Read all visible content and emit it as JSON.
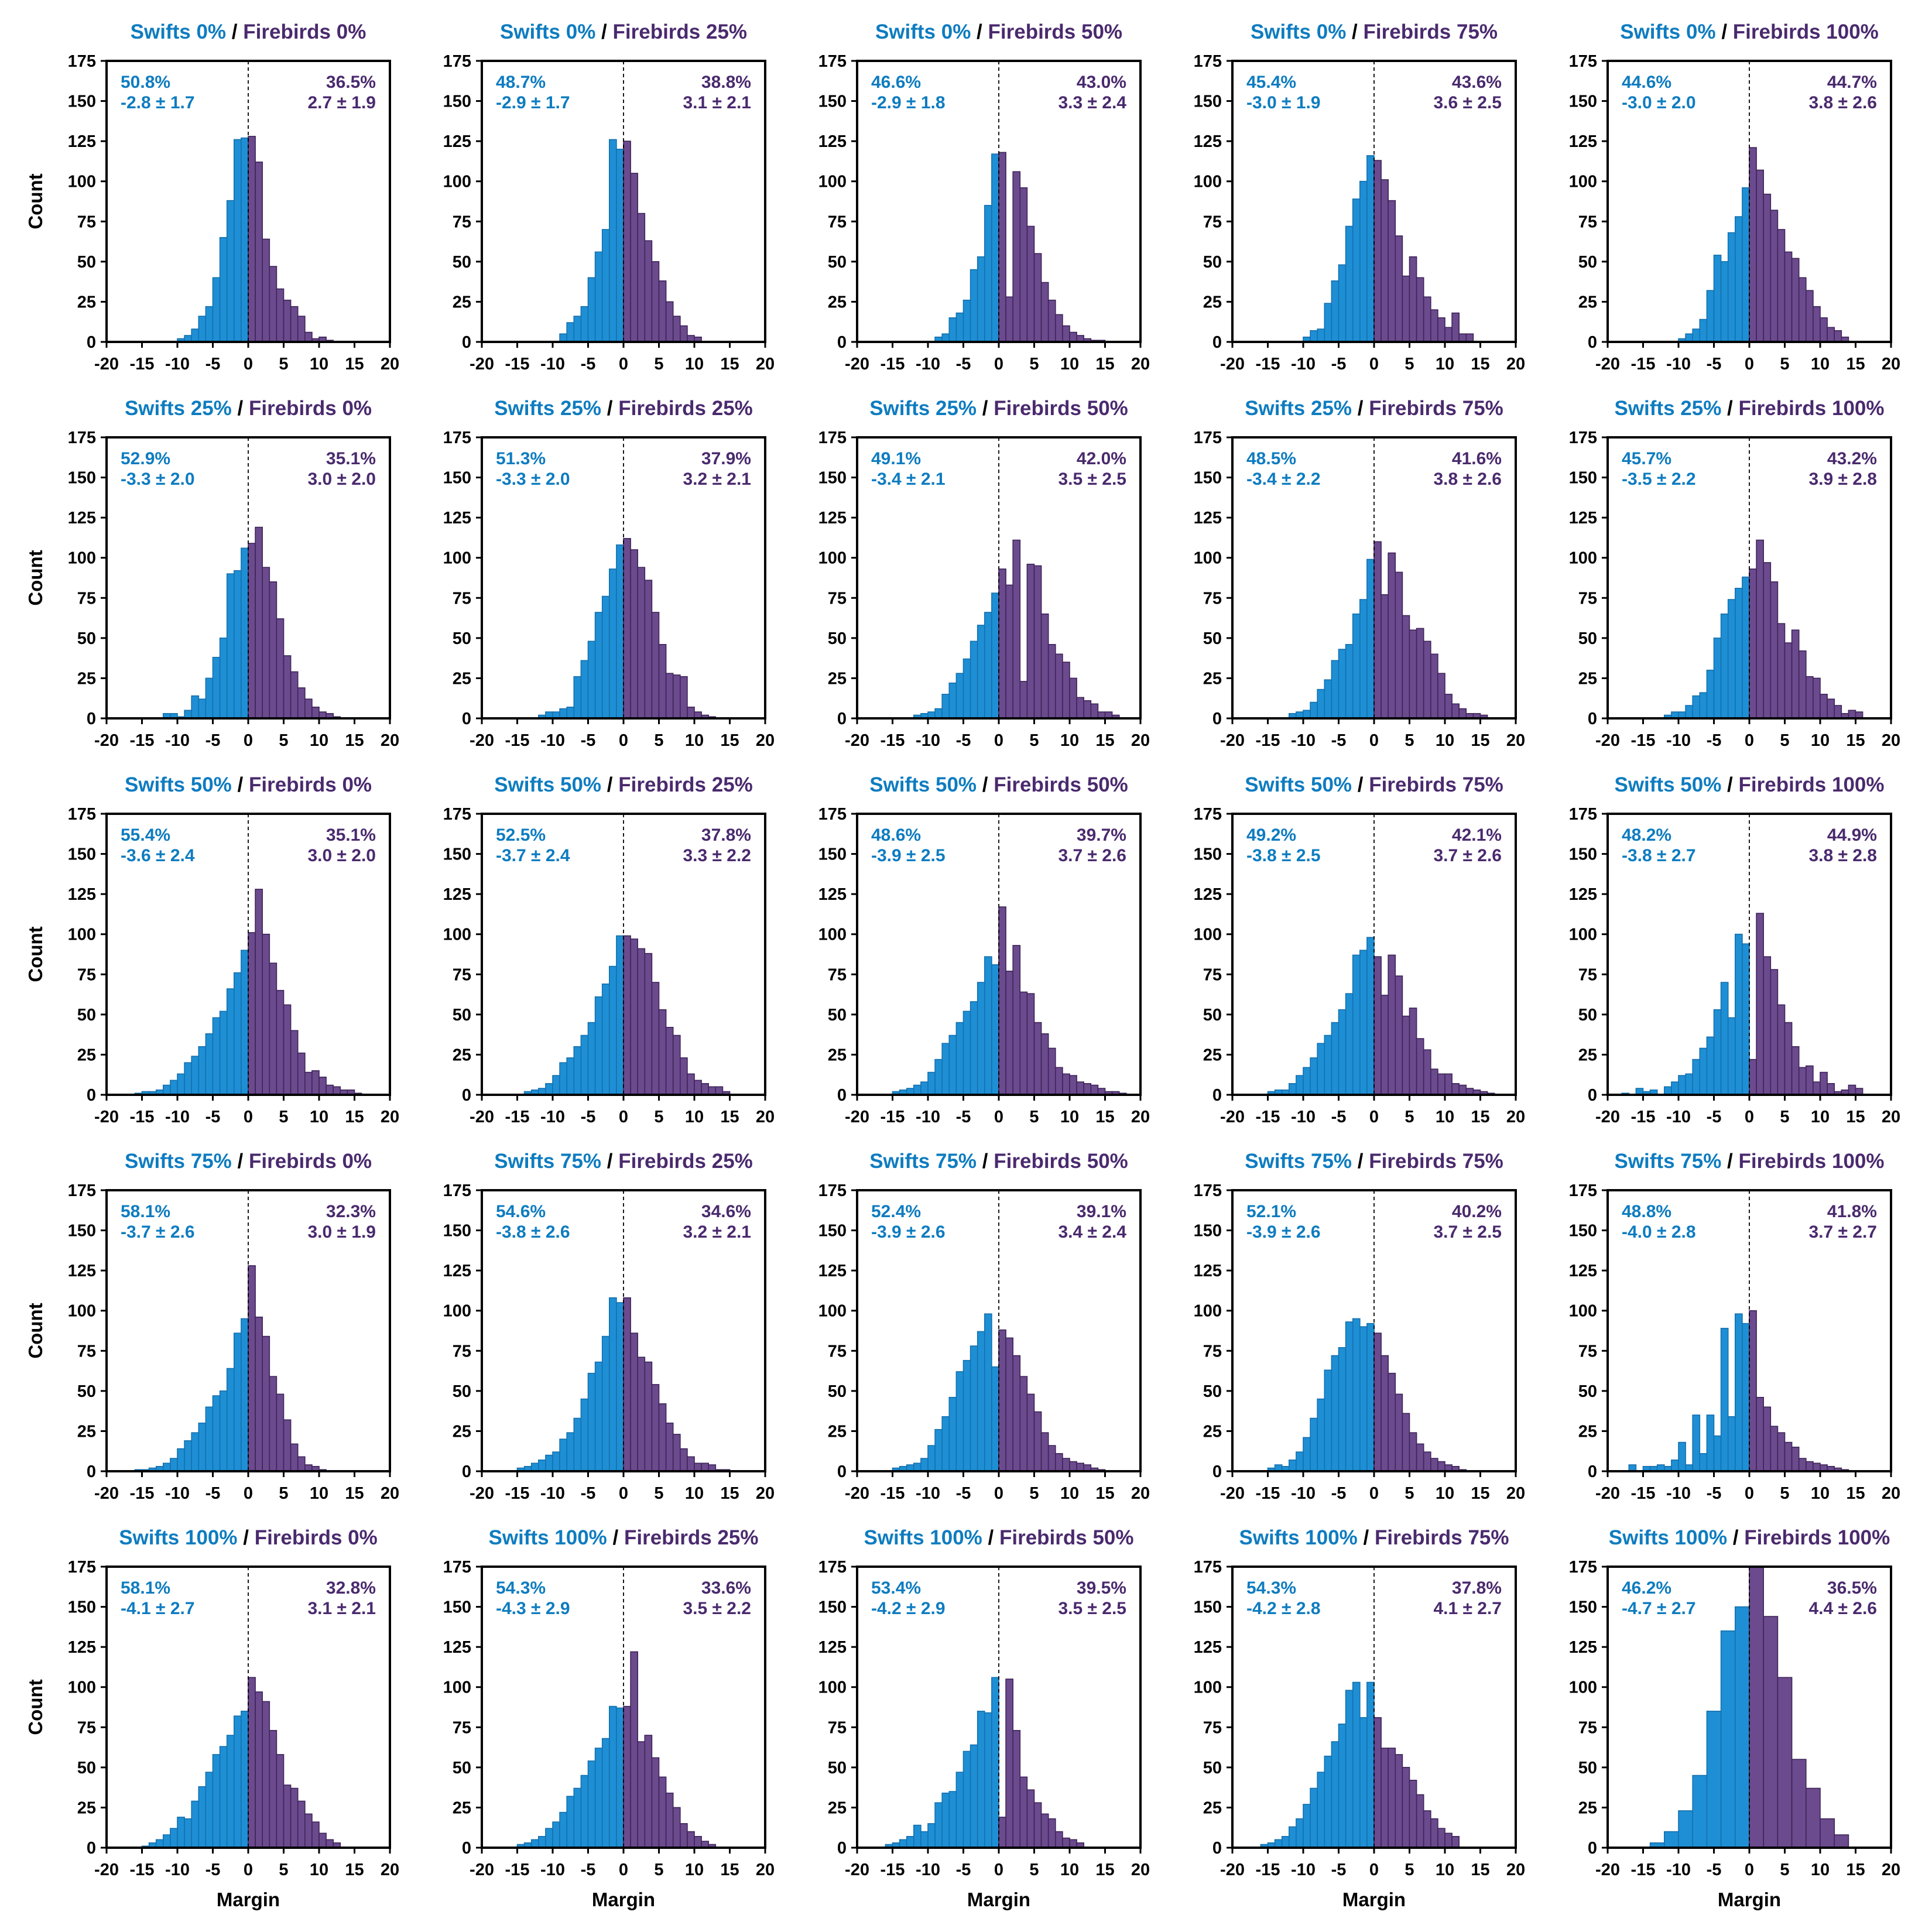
{
  "colors": {
    "swifts": "#1E8FD5",
    "swifts_edge": "#1570AD",
    "firebirds": "#6B4A8E",
    "firebirds_edge": "#3E2558",
    "tie": "#A0A0A0",
    "swifts_text": "#0E7CC0",
    "firebirds_text": "#4A2A6E",
    "axis": "#000000"
  },
  "x_label": "Margin",
  "y_label": "Count",
  "title_separator": "/",
  "x_ticks": [
    "-20",
    "-15",
    "-10",
    "-5",
    "0",
    "5",
    "10",
    "15",
    "20"
  ],
  "y_ticks": [
    "0",
    "25",
    "50",
    "75",
    "100",
    "125",
    "150",
    "175"
  ],
  "chart_data": [
    {
      "type": "bar",
      "swift_title": "Swifts 0%",
      "fire_title": "Firebirds 0%",
      "swift_pct": "50.8%",
      "swift_mean": "-2.8 ± 1.7",
      "fire_pct": "36.5%",
      "fire_mean": "2.7 ± 1.9",
      "xlim": [
        -20,
        20
      ],
      "ylim": [
        0,
        175
      ],
      "bin_start": -10,
      "bin_width": 1,
      "values": [
        2,
        4,
        8,
        16,
        22,
        40,
        65,
        88,
        126,
        127,
        128,
        112,
        64,
        47,
        33,
        26,
        22,
        16,
        6,
        2,
        3,
        1
      ]
    },
    {
      "type": "bar",
      "swift_title": "Swifts 0%",
      "fire_title": "Firebirds 25%",
      "swift_pct": "48.7%",
      "swift_mean": "-2.9 ± 1.7",
      "fire_pct": "38.8%",
      "fire_mean": "3.1 ± 2.1",
      "xlim": [
        -20,
        20
      ],
      "ylim": [
        0,
        175
      ],
      "bin_start": -9,
      "bin_width": 1,
      "values": [
        5,
        12,
        16,
        22,
        40,
        56,
        70,
        126,
        120,
        125,
        105,
        80,
        63,
        50,
        38,
        25,
        16,
        10,
        4,
        3
      ]
    },
    {
      "type": "bar",
      "swift_title": "Swifts 0%",
      "fire_title": "Firebirds 50%",
      "swift_pct": "46.6%",
      "swift_mean": "-2.9 ± 1.8",
      "fire_pct": "43.0%",
      "fire_mean": "3.3 ± 2.4",
      "xlim": [
        -20,
        20
      ],
      "ylim": [
        0,
        175
      ],
      "bin_start": -9,
      "bin_width": 1,
      "values": [
        3,
        5,
        15,
        18,
        26,
        45,
        53,
        85,
        117,
        118,
        28,
        106,
        96,
        72,
        55,
        37,
        26,
        17,
        10,
        6,
        4,
        2,
        1,
        1
      ]
    },
    {
      "type": "bar",
      "swift_title": "Swifts 0%",
      "fire_title": "Firebirds 75%",
      "swift_pct": "45.4%",
      "swift_mean": "-3.0 ± 1.9",
      "fire_pct": "43.6%",
      "fire_mean": "3.6 ± 2.5",
      "xlim": [
        -20,
        20
      ],
      "ylim": [
        0,
        175
      ],
      "bin_start": -10,
      "bin_width": 1,
      "values": [
        3,
        7,
        8,
        24,
        38,
        48,
        72,
        89,
        100,
        116,
        113,
        101,
        88,
        66,
        41,
        53,
        40,
        28,
        20,
        15,
        9,
        18,
        5,
        5
      ]
    },
    {
      "type": "bar",
      "swift_title": "Swifts 0%",
      "fire_title": "Firebirds 100%",
      "swift_pct": "44.6%",
      "swift_mean": "-3.0 ± 2.0",
      "fire_pct": "44.7%",
      "fire_mean": "3.8 ± 2.6",
      "xlim": [
        -20,
        20
      ],
      "ylim": [
        0,
        175
      ],
      "bin_start": -10,
      "bin_width": 1,
      "values": [
        2,
        5,
        8,
        14,
        32,
        54,
        50,
        68,
        78,
        96,
        121,
        107,
        92,
        82,
        70,
        56,
        52,
        40,
        32,
        22,
        15,
        9,
        7,
        3
      ]
    },
    {
      "type": "bar",
      "swift_title": "Swifts 25%",
      "fire_title": "Firebirds 0%",
      "swift_pct": "52.9%",
      "swift_mean": "-3.3 ± 2.0",
      "fire_pct": "35.1%",
      "fire_mean": "3.0 ± 2.0",
      "xlim": [
        -20,
        20
      ],
      "ylim": [
        0,
        175
      ],
      "bin_start": -12,
      "bin_width": 1,
      "values": [
        3,
        3,
        1,
        5,
        14,
        12,
        25,
        38,
        50,
        90,
        92,
        106,
        109,
        119,
        94,
        85,
        62,
        39,
        29,
        19,
        12,
        7,
        4,
        3,
        1
      ]
    },
    {
      "type": "bar",
      "swift_title": "Swifts 25%",
      "fire_title": "Firebirds 25%",
      "swift_pct": "51.3%",
      "swift_mean": "-3.3 ± 2.0",
      "fire_pct": "37.9%",
      "fire_mean": "3.2 ± 2.1",
      "xlim": [
        -20,
        20
      ],
      "ylim": [
        0,
        175
      ],
      "bin_start": -12,
      "bin_width": 1,
      "values": [
        2,
        4,
        4,
        6,
        7,
        26,
        36,
        48,
        66,
        76,
        93,
        108,
        112,
        105,
        94,
        86,
        66,
        46,
        28,
        27,
        26,
        7,
        4,
        2,
        1
      ]
    },
    {
      "type": "bar",
      "swift_title": "Swifts 25%",
      "fire_title": "Firebirds 50%",
      "swift_pct": "49.1%",
      "swift_mean": "-3.4 ± 2.1",
      "fire_pct": "42.0%",
      "fire_mean": "3.5 ± 2.5",
      "xlim": [
        -20,
        20
      ],
      "ylim": [
        0,
        175
      ],
      "bin_start": -12,
      "bin_width": 1,
      "values": [
        2,
        3,
        4,
        6,
        15,
        22,
        28,
        37,
        48,
        58,
        66,
        78,
        93,
        83,
        111,
        23,
        96,
        95,
        65,
        46,
        40,
        35,
        25,
        13,
        11,
        9,
        4,
        4,
        2
      ]
    },
    {
      "type": "bar",
      "swift_title": "Swifts 25%",
      "fire_title": "Firebirds 75%",
      "swift_pct": "48.5%",
      "swift_mean": "-3.4 ± 2.2",
      "fire_pct": "41.6%",
      "fire_mean": "3.8 ± 2.6",
      "xlim": [
        -20,
        20
      ],
      "ylim": [
        0,
        175
      ],
      "bin_start": -12,
      "bin_width": 1,
      "values": [
        3,
        4,
        5,
        10,
        18,
        24,
        36,
        43,
        46,
        65,
        74,
        99,
        110,
        77,
        103,
        91,
        64,
        55,
        56,
        48,
        40,
        28,
        15,
        9,
        6,
        3,
        3,
        2
      ]
    },
    {
      "type": "bar",
      "swift_title": "Swifts 25%",
      "fire_title": "Firebirds 100%",
      "swift_pct": "45.7%",
      "swift_mean": "-3.5 ± 2.2",
      "fire_pct": "43.2%",
      "fire_mean": "3.9 ± 2.8",
      "xlim": [
        -20,
        20
      ],
      "ylim": [
        0,
        175
      ],
      "bin_start": -12,
      "bin_width": 1,
      "values": [
        2,
        4,
        4,
        8,
        14,
        16,
        30,
        50,
        65,
        74,
        81,
        88,
        93,
        111,
        97,
        85,
        59,
        47,
        55,
        42,
        26,
        25,
        15,
        12,
        8,
        3,
        5,
        4
      ]
    },
    {
      "type": "bar",
      "swift_title": "Swifts 50%",
      "fire_title": "Firebirds 0%",
      "swift_pct": "55.4%",
      "swift_mean": "-3.6 ± 2.4",
      "fire_pct": "35.1%",
      "fire_mean": "3.0 ± 2.0",
      "xlim": [
        -20,
        20
      ],
      "ylim": [
        0,
        175
      ],
      "bin_start": -16,
      "bin_width": 1,
      "values": [
        1,
        2,
        2,
        3,
        6,
        9,
        13,
        20,
        24,
        30,
        38,
        48,
        52,
        66,
        76,
        90,
        101,
        128,
        100,
        82,
        65,
        56,
        40,
        26,
        14,
        15,
        11,
        6,
        5,
        3,
        3,
        1
      ]
    },
    {
      "type": "bar",
      "swift_title": "Swifts 50%",
      "fire_title": "Firebirds 25%",
      "swift_pct": "52.5%",
      "swift_mean": "-3.7 ± 2.4",
      "fire_pct": "37.8%",
      "fire_mean": "3.3 ± 2.2",
      "xlim": [
        -20,
        20
      ],
      "ylim": [
        0,
        175
      ],
      "bin_start": -14,
      "bin_width": 1,
      "values": [
        2,
        3,
        4,
        7,
        12,
        20,
        23,
        30,
        37,
        45,
        61,
        69,
        80,
        99,
        99,
        97,
        91,
        88,
        70,
        53,
        42,
        37,
        23,
        13,
        9,
        7,
        5,
        5,
        2
      ]
    },
    {
      "type": "bar",
      "swift_title": "Swifts 50%",
      "fire_title": "Firebirds 50%",
      "swift_pct": "48.6%",
      "swift_mean": "-3.9 ± 2.5",
      "fire_pct": "39.7%",
      "fire_mean": "3.7 ± 2.6",
      "xlim": [
        -20,
        20
      ],
      "ylim": [
        0,
        175
      ],
      "bin_start": -15,
      "bin_width": 1,
      "values": [
        2,
        3,
        4,
        6,
        8,
        14,
        22,
        32,
        37,
        45,
        52,
        58,
        70,
        86,
        81,
        117,
        77,
        93,
        64,
        63,
        45,
        38,
        29,
        17,
        13,
        12,
        8,
        7,
        6,
        4,
        2,
        2,
        1
      ]
    },
    {
      "type": "bar",
      "swift_title": "Swifts 50%",
      "fire_title": "Firebirds 75%",
      "swift_pct": "49.2%",
      "swift_mean": "-3.8 ± 2.5",
      "fire_pct": "42.1%",
      "fire_mean": "3.7 ± 2.6",
      "xlim": [
        -20,
        20
      ],
      "ylim": [
        0,
        175
      ],
      "bin_start": -15,
      "bin_width": 1,
      "values": [
        2,
        3,
        3,
        7,
        12,
        17,
        23,
        32,
        37,
        45,
        53,
        63,
        87,
        90,
        98,
        86,
        62,
        87,
        74,
        49,
        54,
        35,
        28,
        16,
        13,
        13,
        7,
        6,
        4,
        3,
        2,
        1
      ]
    },
    {
      "type": "bar",
      "swift_title": "Swifts 50%",
      "fire_title": "Firebirds 100%",
      "swift_pct": "48.2%",
      "swift_mean": "-3.8 ± 2.7",
      "fire_pct": "44.9%",
      "fire_mean": "3.8 ± 2.8",
      "xlim": [
        -20,
        20
      ],
      "ylim": [
        0,
        175
      ],
      "bin_start": -20,
      "bin_width": 1,
      "values": [
        0,
        0,
        1,
        0,
        4,
        2,
        3,
        0,
        5,
        8,
        12,
        13,
        22,
        29,
        36,
        53,
        70,
        48,
        100,
        94,
        22,
        113,
        86,
        78,
        56,
        45,
        30,
        17,
        18,
        8,
        14,
        7,
        2,
        3,
        6,
        4
      ]
    },
    {
      "type": "bar",
      "swift_title": "Swifts 75%",
      "fire_title": "Firebirds 0%",
      "swift_pct": "58.1%",
      "swift_mean": "-3.7 ± 2.6",
      "fire_pct": "32.3%",
      "fire_mean": "3.0 ± 1.9",
      "xlim": [
        -20,
        20
      ],
      "ylim": [
        0,
        175
      ],
      "bin_start": -16,
      "bin_width": 1,
      "values": [
        1,
        1,
        2,
        3,
        5,
        8,
        14,
        19,
        24,
        30,
        40,
        47,
        50,
        64,
        86,
        95,
        128,
        96,
        84,
        59,
        48,
        32,
        17,
        9,
        4,
        3,
        1
      ]
    },
    {
      "type": "bar",
      "swift_title": "Swifts 75%",
      "fire_title": "Firebirds 25%",
      "swift_pct": "54.6%",
      "swift_mean": "-3.8 ± 2.6",
      "fire_pct": "34.6%",
      "fire_mean": "3.2 ± 2.1",
      "xlim": [
        -20,
        20
      ],
      "ylim": [
        0,
        175
      ],
      "bin_start": -15,
      "bin_width": 1,
      "values": [
        2,
        3,
        5,
        7,
        10,
        12,
        20,
        24,
        33,
        45,
        61,
        68,
        84,
        108,
        105,
        108,
        86,
        71,
        68,
        54,
        42,
        30,
        23,
        14,
        9,
        5,
        5,
        4,
        1,
        1
      ]
    },
    {
      "type": "bar",
      "swift_title": "Swifts 75%",
      "fire_title": "Firebirds 50%",
      "swift_pct": "52.4%",
      "swift_mean": "-3.9 ± 2.6",
      "fire_pct": "39.1%",
      "fire_mean": "3.4 ± 2.4",
      "xlim": [
        -20,
        20
      ],
      "ylim": [
        0,
        175
      ],
      "bin_start": -15,
      "bin_width": 1,
      "values": [
        2,
        3,
        4,
        5,
        8,
        16,
        26,
        34,
        46,
        62,
        69,
        78,
        87,
        98,
        65,
        88,
        83,
        72,
        59,
        48,
        37,
        24,
        16,
        11,
        8,
        6,
        5,
        4,
        2,
        1
      ]
    },
    {
      "type": "bar",
      "swift_title": "Swifts 75%",
      "fire_title": "Firebirds 75%",
      "swift_pct": "52.1%",
      "swift_mean": "-3.9 ± 2.6",
      "fire_pct": "40.2%",
      "fire_mean": "3.7 ± 2.5",
      "xlim": [
        -20,
        20
      ],
      "ylim": [
        0,
        175
      ],
      "bin_start": -15,
      "bin_width": 1,
      "values": [
        2,
        4,
        3,
        7,
        12,
        21,
        33,
        45,
        63,
        72,
        77,
        93,
        95,
        90,
        92,
        86,
        72,
        61,
        48,
        36,
        24,
        17,
        12,
        8,
        6,
        4,
        3,
        1
      ]
    },
    {
      "type": "bar",
      "swift_title": "Swifts 75%",
      "fire_title": "Firebirds 100%",
      "swift_pct": "48.8%",
      "swift_mean": "-4.0 ± 2.8",
      "fire_pct": "41.8%",
      "fire_mean": "3.7 ± 2.7",
      "xlim": [
        -20,
        20
      ],
      "ylim": [
        0,
        175
      ],
      "bin_start": -17,
      "bin_width": 1,
      "values": [
        4,
        0,
        3,
        3,
        4,
        3,
        7,
        18,
        4,
        35,
        11,
        35,
        22,
        89,
        34,
        98,
        92,
        100,
        46,
        40,
        28,
        24,
        18,
        15,
        8,
        6,
        5,
        4,
        3,
        2,
        1
      ]
    },
    {
      "type": "bar",
      "swift_title": "Swifts 100%",
      "fire_title": "Firebirds 0%",
      "swift_pct": "58.1%",
      "swift_mean": "-4.1 ± 2.7",
      "fire_pct": "32.8%",
      "fire_mean": "3.1 ± 2.1",
      "xlim": [
        -20,
        20
      ],
      "ylim": [
        0,
        175
      ],
      "bin_start": -15,
      "bin_width": 1,
      "values": [
        1,
        3,
        5,
        8,
        12,
        19,
        18,
        29,
        38,
        47,
        58,
        63,
        70,
        82,
        85,
        106,
        97,
        91,
        73,
        58,
        39,
        37,
        29,
        21,
        16,
        9,
        5,
        3
      ]
    },
    {
      "type": "bar",
      "swift_title": "Swifts 100%",
      "fire_title": "Firebirds 25%",
      "swift_pct": "54.3%",
      "swift_mean": "-4.3 ± 2.9",
      "fire_pct": "33.6%",
      "fire_mean": "3.5 ± 2.2",
      "xlim": [
        -20,
        20
      ],
      "ylim": [
        0,
        175
      ],
      "bin_start": -15,
      "bin_width": 1,
      "values": [
        2,
        3,
        5,
        7,
        12,
        16,
        22,
        32,
        37,
        45,
        54,
        62,
        68,
        88,
        87,
        88,
        122,
        66,
        70,
        56,
        44,
        34,
        25,
        15,
        10,
        7,
        4,
        2
      ]
    },
    {
      "type": "bar",
      "swift_title": "Swifts 100%",
      "fire_title": "Firebirds 50%",
      "swift_pct": "53.4%",
      "swift_mean": "-4.2 ± 2.9",
      "fire_pct": "39.5%",
      "fire_mean": "3.5 ± 2.5",
      "xlim": [
        -20,
        20
      ],
      "ylim": [
        0,
        175
      ],
      "bin_start": -16,
      "bin_width": 1,
      "values": [
        2,
        3,
        5,
        7,
        14,
        10,
        15,
        28,
        34,
        35,
        47,
        60,
        64,
        85,
        84,
        106,
        19,
        105,
        73,
        44,
        36,
        28,
        21,
        18,
        10,
        6,
        5,
        3
      ]
    },
    {
      "type": "bar",
      "swift_title": "Swifts 100%",
      "fire_title": "Firebirds 75%",
      "swift_pct": "54.3%",
      "swift_mean": "-4.2 ± 2.8",
      "fire_pct": "37.8%",
      "fire_mean": "4.1 ± 2.7",
      "xlim": [
        -20,
        20
      ],
      "ylim": [
        0,
        175
      ],
      "bin_start": -16,
      "bin_width": 1,
      "values": [
        2,
        3,
        5,
        7,
        13,
        18,
        27,
        37,
        47,
        57,
        66,
        77,
        98,
        103,
        81,
        103,
        81,
        62,
        62,
        58,
        50,
        42,
        33,
        23,
        18,
        12,
        9,
        7
      ]
    },
    {
      "type": "bar",
      "swift_title": "Swifts 100%",
      "fire_title": "Firebirds 100%",
      "swift_pct": "46.2%",
      "swift_mean": "-4.7 ± 2.7",
      "fire_pct": "36.5%",
      "fire_mean": "4.4 ± 2.6",
      "xlim": [
        -20,
        20
      ],
      "ylim": [
        0,
        175
      ],
      "bin_start": -14,
      "bin_width": 2,
      "values": [
        3,
        10,
        23,
        45,
        85,
        135,
        150,
        175,
        144,
        106,
        55,
        37,
        18,
        8
      ]
    }
  ]
}
